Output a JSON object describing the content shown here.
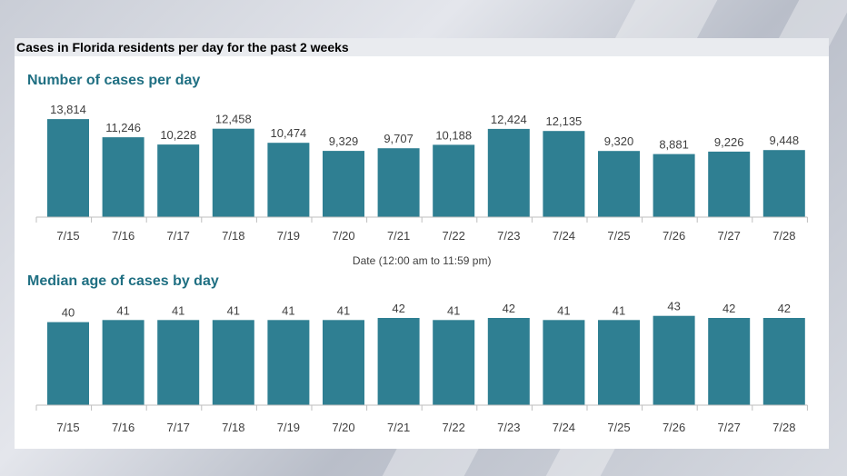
{
  "headline": "Cases in Florida residents per day for the past 2 weeks",
  "colors": {
    "bar": "#2f7f92",
    "title": "#1f6f82",
    "axis": "#bfbfbf",
    "text": "#404040"
  },
  "chart_data": [
    {
      "type": "bar",
      "title": "Number of cases per day",
      "xlabel": "Date (12:00 am to 11:59 pm)",
      "ylabel": "",
      "categories": [
        "7/15",
        "7/16",
        "7/17",
        "7/18",
        "7/19",
        "7/20",
        "7/21",
        "7/22",
        "7/23",
        "7/24",
        "7/25",
        "7/26",
        "7/27",
        "7/28"
      ],
      "values": [
        13814,
        11246,
        10228,
        12458,
        10474,
        9329,
        9707,
        10188,
        12424,
        12135,
        9320,
        8881,
        9226,
        9448
      ],
      "value_labels": [
        "13,814",
        "11,246",
        "10,228",
        "12,458",
        "10,474",
        "9,329",
        "9,707",
        "10,188",
        "12,424",
        "12,135",
        "9,320",
        "8,881",
        "9,226",
        "9,448"
      ],
      "ylim": [
        0,
        16000
      ],
      "grid": false,
      "legend": "none"
    },
    {
      "type": "bar",
      "title": "Median age of cases by day",
      "xlabel": "",
      "ylabel": "",
      "categories": [
        "7/15",
        "7/16",
        "7/17",
        "7/18",
        "7/19",
        "7/20",
        "7/21",
        "7/22",
        "7/23",
        "7/24",
        "7/25",
        "7/26",
        "7/27",
        "7/28"
      ],
      "values": [
        40,
        41,
        41,
        41,
        41,
        41,
        42,
        41,
        42,
        41,
        41,
        43,
        42,
        42
      ],
      "value_labels": [
        "40",
        "41",
        "41",
        "41",
        "41",
        "41",
        "42",
        "41",
        "42",
        "41",
        "41",
        "43",
        "42",
        "42"
      ],
      "ylim": [
        0,
        49
      ],
      "grid": false,
      "legend": "none"
    }
  ]
}
